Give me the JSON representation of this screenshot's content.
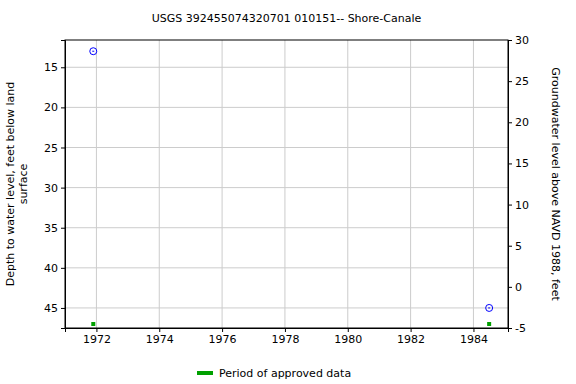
{
  "chart_data": {
    "type": "scatter",
    "title": "USGS 392455074320701 010151-- Shore-Canale",
    "ylabel": "Depth to water level, feet below land\nsurface",
    "y2label": "Groundwater level above NAVD 1988, feet",
    "x": [
      1971.9,
      1984.5
    ],
    "series": [
      {
        "color": "#0000ff",
        "marker": "open-circle",
        "values": [
          13.0,
          45.0
        ]
      },
      {
        "name": "Period of approved data",
        "color": "#00a000",
        "type": "period",
        "marker": "square",
        "x": [
          1971.9,
          1984.5
        ]
      }
    ],
    "xlim": [
      1971,
      1985.1
    ],
    "xticks": [
      1972,
      1974,
      1976,
      1978,
      1980,
      1982,
      1984
    ],
    "ylim": [
      11.6,
      47.5
    ],
    "yticks": [
      15,
      20,
      25,
      30,
      35,
      40,
      45
    ],
    "y2lim": [
      -5,
      30
    ],
    "y2ticks": [
      -5,
      0,
      5,
      10,
      15,
      20,
      25,
      30
    ],
    "grid": true,
    "legend": "bottom"
  }
}
